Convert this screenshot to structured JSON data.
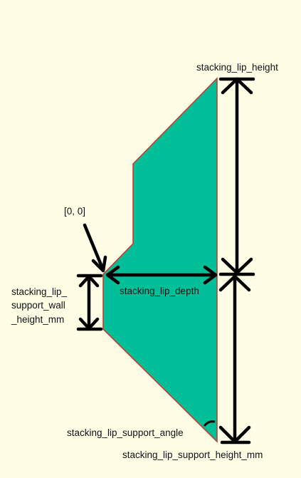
{
  "colors": {
    "background": "#fffde6",
    "profile_fill": "#00bf99",
    "profile_outline": "#c0392b",
    "arrows": "#000000"
  },
  "labels": {
    "stacking_lip_height": "stacking_lip_height",
    "origin": "[0, 0]",
    "stacking_lip_depth": "stacking_lip_depth",
    "support_wall_line1": "stacking_lip_",
    "support_wall_line2": "support_wall",
    "support_wall_line3": "_height_mm",
    "support_angle": "stacking_lip_support_angle",
    "support_height": "stacking_lip_support_height_mm"
  }
}
